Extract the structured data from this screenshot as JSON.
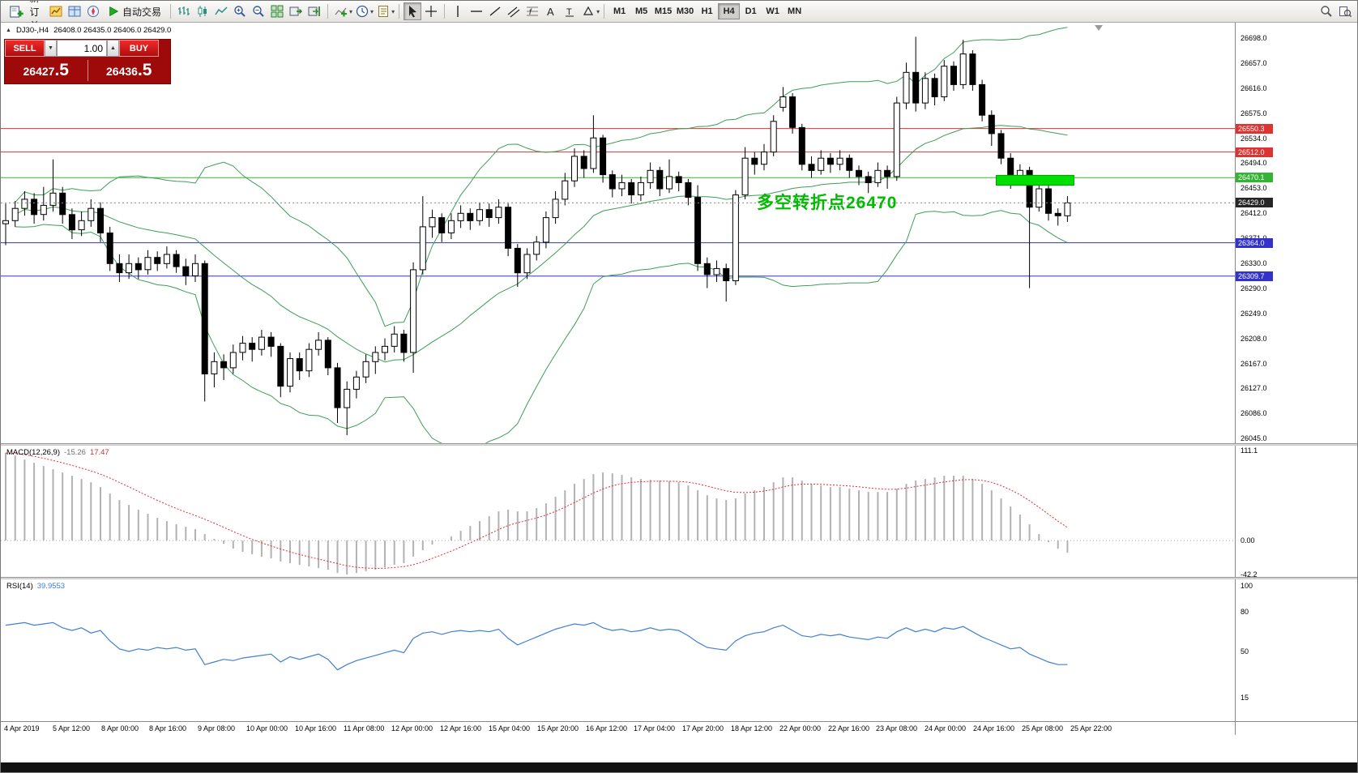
{
  "toolbar": {
    "new_order_label": "新订单",
    "auto_trading_label": "自动交易",
    "timeframes": [
      "M1",
      "M5",
      "M15",
      "M30",
      "H1",
      "H4",
      "D1",
      "W1",
      "MN"
    ],
    "active_timeframe": "H4"
  },
  "chart": {
    "title": "DJ30-,H4",
    "ohlc_text": "26408.0 26435.0 26406.0 26429.0",
    "annotation": {
      "text": "多空转折点26470",
      "color": "#00bb00"
    },
    "axis_labels": [
      "26698.0",
      "26657.0",
      "26616.0",
      "26575.0",
      "26534.0",
      "26494.0",
      "26453.0",
      "26412.0",
      "26371.0",
      "26330.0",
      "26290.0",
      "26249.0",
      "26208.0",
      "26167.0",
      "26127.0",
      "26086.0",
      "26045.0"
    ],
    "levels": [
      {
        "price": 26550.3,
        "label": "26550.3",
        "color": "#dd3333"
      },
      {
        "price": 26512.0,
        "label": "26512.0",
        "color": "#dd3333"
      },
      {
        "price": 26470.1,
        "label": "26470.1",
        "color": "#33b533"
      },
      {
        "price": 26364.0,
        "label": "26364.0",
        "color": "#3333cc"
      },
      {
        "price": 26309.7,
        "label": "26309.7",
        "color": "#3333cc"
      }
    ],
    "current_price": {
      "value": 26429.0,
      "label": "26429.0",
      "color": "#262626"
    },
    "highlight_zone": {
      "price_top": 26474,
      "price_bottom": 26458,
      "color": "#00e000"
    }
  },
  "trade_panel": {
    "sell_label": "SELL",
    "buy_label": "BUY",
    "volume": "1.00",
    "sell_price_main": "26427",
    "sell_price_pip": ".5",
    "buy_price_main": "26436",
    "buy_price_pip": ".5"
  },
  "macd_panel": {
    "name": "MACD(12,26,9)",
    "value_hist": "-15.26",
    "value_signal": "17.47",
    "scale_top": "111.1",
    "scale_zero": "0.00",
    "scale_bottom": "-42.2"
  },
  "rsi_panel": {
    "name": "RSI(14)",
    "value": "39.9553",
    "scale": [
      "100",
      "80",
      "50",
      "15"
    ]
  },
  "time_axis": [
    "4 Apr 2019",
    "5 Apr 12:00",
    "8 Apr 00:00",
    "8 Apr 16:00",
    "9 Apr 08:00",
    "10 Apr 00:00",
    "10 Apr 16:00",
    "11 Apr 08:00",
    "12 Apr 00:00",
    "12 Apr 16:00",
    "15 Apr 04:00",
    "15 Apr 20:00",
    "16 Apr 12:00",
    "17 Apr 04:00",
    "17 Apr 20:00",
    "18 Apr 12:00",
    "22 Apr 00:00",
    "22 Apr 16:00",
    "23 Apr 08:00",
    "24 Apr 00:00",
    "24 Apr 16:00",
    "25 Apr 08:00",
    "25 Apr 22:00"
  ],
  "chart_data": {
    "type": "candlestick",
    "symbol": "DJ30-",
    "timeframe": "H4",
    "ylim": [
      26045,
      26698
    ],
    "candles": [
      [
        26395,
        26428,
        26360,
        26400
      ],
      [
        26400,
        26432,
        26390,
        26420
      ],
      [
        26420,
        26448,
        26408,
        26435
      ],
      [
        26435,
        26445,
        26395,
        26410
      ],
      [
        26410,
        26455,
        26400,
        26425
      ],
      [
        26425,
        26500,
        26415,
        26445
      ],
      [
        26445,
        26455,
        26395,
        26410
      ],
      [
        26410,
        26420,
        26370,
        26385
      ],
      [
        26385,
        26415,
        26375,
        26400
      ],
      [
        26400,
        26435,
        26390,
        26420
      ],
      [
        26420,
        26430,
        26365,
        26380
      ],
      [
        26380,
        26390,
        26318,
        26330
      ],
      [
        26330,
        26345,
        26300,
        26315
      ],
      [
        26315,
        26345,
        26305,
        26330
      ],
      [
        26330,
        26340,
        26305,
        26320
      ],
      [
        26320,
        26352,
        26312,
        26340
      ],
      [
        26340,
        26350,
        26318,
        26330
      ],
      [
        26330,
        26358,
        26322,
        26345
      ],
      [
        26345,
        26352,
        26315,
        26325
      ],
      [
        26325,
        26338,
        26295,
        26310
      ],
      [
        26310,
        26345,
        26300,
        26330
      ],
      [
        26330,
        26335,
        26105,
        26150
      ],
      [
        26150,
        26185,
        26128,
        26170
      ],
      [
        26170,
        26182,
        26140,
        26160
      ],
      [
        26160,
        26198,
        26150,
        26185
      ],
      [
        26185,
        26212,
        26172,
        26200
      ],
      [
        26200,
        26210,
        26170,
        26190
      ],
      [
        26190,
        26222,
        26180,
        26210
      ],
      [
        26210,
        26218,
        26178,
        26195
      ],
      [
        26195,
        26200,
        26112,
        26130
      ],
      [
        26130,
        26185,
        26120,
        26175
      ],
      [
        26175,
        26185,
        26140,
        26155
      ],
      [
        26155,
        26200,
        26145,
        26190
      ],
      [
        26190,
        26218,
        26180,
        26205
      ],
      [
        26205,
        26210,
        26148,
        26160
      ],
      [
        26160,
        26168,
        26070,
        26095
      ],
      [
        26095,
        26138,
        26050,
        26125
      ],
      [
        26125,
        26155,
        26110,
        26145
      ],
      [
        26145,
        26182,
        26135,
        26170
      ],
      [
        26170,
        26195,
        26150,
        26185
      ],
      [
        26185,
        26208,
        26172,
        26195
      ],
      [
        26195,
        26228,
        26185,
        26215
      ],
      [
        26215,
        26222,
        26170,
        26185
      ],
      [
        26185,
        26332,
        26152,
        26320
      ],
      [
        26320,
        26440,
        26312,
        26390
      ],
      [
        26390,
        26418,
        26372,
        26405
      ],
      [
        26405,
        26412,
        26365,
        26380
      ],
      [
        26380,
        26412,
        26370,
        26400
      ],
      [
        26400,
        26425,
        26388,
        26412
      ],
      [
        26412,
        26420,
        26385,
        26400
      ],
      [
        26400,
        26430,
        26392,
        26418
      ],
      [
        26418,
        26428,
        26390,
        26405
      ],
      [
        26405,
        26435,
        26395,
        26422
      ],
      [
        26422,
        26428,
        26342,
        26355
      ],
      [
        26355,
        26362,
        26292,
        26315
      ],
      [
        26315,
        26355,
        26305,
        26345
      ],
      [
        26345,
        26375,
        26335,
        26365
      ],
      [
        26365,
        26415,
        26355,
        26405
      ],
      [
        26405,
        26448,
        26395,
        26435
      ],
      [
        26435,
        26478,
        26425,
        26465
      ],
      [
        26465,
        26518,
        26455,
        26505
      ],
      [
        26505,
        26515,
        26470,
        26485
      ],
      [
        26485,
        26572,
        26478,
        26535
      ],
      [
        26535,
        26540,
        26462,
        26475
      ],
      [
        26475,
        26482,
        26438,
        26452
      ],
      [
        26452,
        26475,
        26440,
        26462
      ],
      [
        26462,
        26468,
        26428,
        26442
      ],
      [
        26442,
        26472,
        26432,
        26462
      ],
      [
        26462,
        26495,
        26452,
        26482
      ],
      [
        26482,
        26488,
        26440,
        26452
      ],
      [
        26452,
        26500,
        26445,
        26472
      ],
      [
        26472,
        26480,
        26448,
        26462
      ],
      [
        26462,
        26468,
        26425,
        26438
      ],
      [
        26438,
        26458,
        26318,
        26330
      ],
      [
        26330,
        26340,
        26290,
        26312
      ],
      [
        26312,
        26335,
        26300,
        26322
      ],
      [
        26322,
        26330,
        26268,
        26302
      ],
      [
        26302,
        26450,
        26295,
        26442
      ],
      [
        26442,
        26520,
        26435,
        26502
      ],
      [
        26502,
        26512,
        26475,
        26492
      ],
      [
        26492,
        26525,
        26482,
        26512
      ],
      [
        26512,
        26572,
        26505,
        26562
      ],
      [
        26585,
        26618,
        26578,
        26602
      ],
      [
        26602,
        26608,
        26542,
        26552
      ],
      [
        26552,
        26558,
        26482,
        26492
      ],
      [
        26492,
        26505,
        26470,
        26482
      ],
      [
        26482,
        26515,
        26475,
        26502
      ],
      [
        26502,
        26510,
        26478,
        26492
      ],
      [
        26492,
        26515,
        26482,
        26502
      ],
      [
        26502,
        26508,
        26470,
        26482
      ],
      [
        26482,
        26490,
        26458,
        26472
      ],
      [
        26472,
        26480,
        26445,
        26462
      ],
      [
        26462,
        26495,
        26455,
        26482
      ],
      [
        26482,
        26490,
        26452,
        26472
      ],
      [
        26472,
        26602,
        26465,
        26592
      ],
      [
        26592,
        26658,
        26582,
        26642
      ],
      [
        26642,
        26700,
        26578,
        26592
      ],
      [
        26592,
        26642,
        26582,
        26632
      ],
      [
        26632,
        26640,
        26588,
        26602
      ],
      [
        26602,
        26662,
        26595,
        26652
      ],
      [
        26652,
        26660,
        26612,
        26622
      ],
      [
        26622,
        26695,
        26615,
        26672
      ],
      [
        26672,
        26678,
        26612,
        26622
      ],
      [
        26622,
        26630,
        26562,
        26572
      ],
      [
        26572,
        26580,
        26522,
        26542
      ],
      [
        26542,
        26548,
        26492,
        26502
      ],
      [
        26502,
        26510,
        26452,
        26472
      ],
      [
        26472,
        26492,
        26462,
        26482
      ],
      [
        26482,
        26488,
        26290,
        26422
      ],
      [
        26422,
        26460,
        26415,
        26452
      ],
      [
        26452,
        26458,
        26400,
        26412
      ],
      [
        26412,
        26420,
        26392,
        26408
      ],
      [
        26408,
        26440,
        26398,
        26429
      ]
    ],
    "indicators": {
      "bollinger": {
        "period": 20,
        "deviation": 2,
        "color": "#3c9e56"
      },
      "macd": {
        "params": "12,26,9",
        "hist_color": "#b2b2b2",
        "signal_color": "#e03030",
        "range": [
          -42.2,
          111.1
        ],
        "histogram": [
          108,
          105,
          100,
          96,
          92,
          88,
          84,
          80,
          76,
          72,
          66,
          58,
          50,
          44,
          38,
          33,
          28,
          24,
          20,
          17,
          14,
          8,
          2,
          -4,
          -10,
          -14,
          -17,
          -20,
          -22,
          -26,
          -28,
          -30,
          -32,
          -34,
          -36,
          -40,
          -42,
          -40,
          -38,
          -36,
          -33,
          -30,
          -28,
          -20,
          -12,
          -5,
          0,
          5,
          12,
          18,
          24,
          30,
          36,
          38,
          36,
          36,
          40,
          46,
          54,
          62,
          70,
          76,
          82,
          84,
          83,
          81,
          78,
          76,
          75,
          74,
          73,
          72,
          68,
          62,
          56,
          52,
          50,
          52,
          58,
          62,
          66,
          72,
          78,
          78,
          74,
          70,
          68,
          66,
          66,
          64,
          62,
          60,
          60,
          60,
          64,
          70,
          74,
          76,
          78,
          80,
          80,
          80,
          76,
          70,
          62,
          52,
          42,
          32,
          20,
          8,
          -2,
          -10,
          -15
        ]
      },
      "rsi": {
        "period": 14,
        "line_color": "#4080d0",
        "values": [
          70,
          71,
          72,
          70,
          71,
          72,
          68,
          66,
          68,
          64,
          66,
          58,
          52,
          50,
          52,
          51,
          53,
          52,
          53,
          51,
          52,
          40,
          42,
          44,
          43,
          45,
          46,
          47,
          48,
          42,
          46,
          44,
          46,
          48,
          44,
          36,
          40,
          43,
          45,
          47,
          49,
          51,
          49,
          60,
          64,
          65,
          63,
          65,
          66,
          65,
          66,
          65,
          67,
          60,
          55,
          58,
          61,
          64,
          67,
          69,
          71,
          70,
          72,
          68,
          66,
          67,
          65,
          66,
          68,
          66,
          67,
          66,
          62,
          57,
          53,
          52,
          51,
          58,
          62,
          64,
          65,
          68,
          70,
          66,
          62,
          61,
          63,
          62,
          63,
          61,
          60,
          59,
          61,
          60,
          65,
          68,
          65,
          67,
          65,
          68,
          67,
          69,
          65,
          61,
          58,
          55,
          52,
          53,
          48,
          45,
          42,
          40,
          40
        ]
      }
    }
  }
}
